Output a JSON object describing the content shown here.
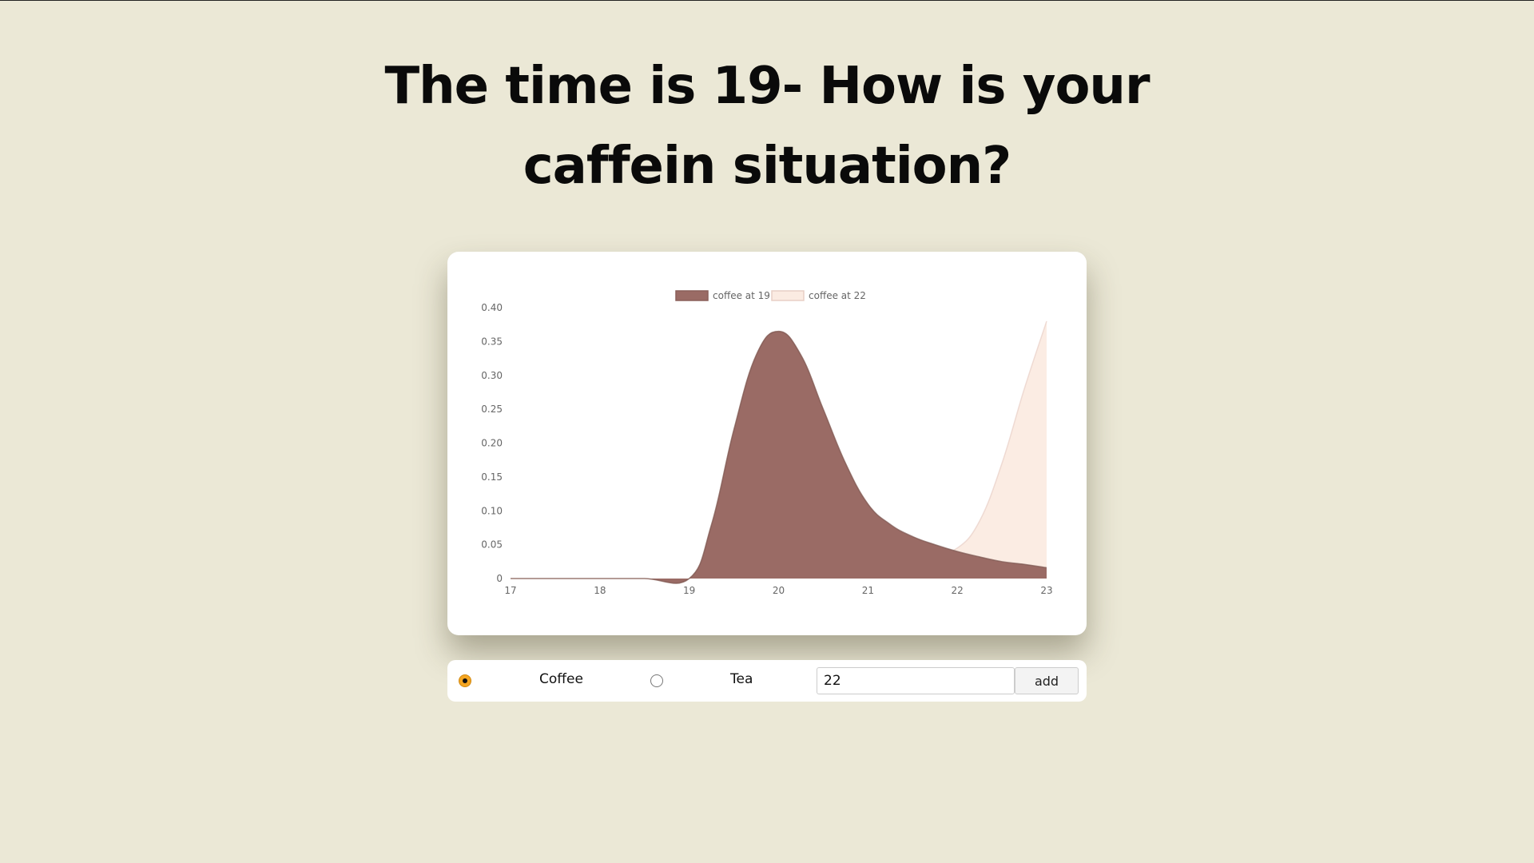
{
  "page": {
    "title": "The time is 19- How is your caffein situation?"
  },
  "chart_data": {
    "type": "area",
    "x": [
      17,
      17.5,
      18,
      18.5,
      19,
      19.25,
      19.5,
      19.75,
      20,
      20.25,
      20.5,
      20.75,
      21,
      21.25,
      21.5,
      21.75,
      22,
      22.25,
      22.5,
      22.75,
      23
    ],
    "series": [
      {
        "name": "coffee at 19",
        "color": "#9a6b65",
        "values": [
          0,
          0,
          0,
          0,
          0,
          0.08,
          0.22,
          0.33,
          0.365,
          0.33,
          0.25,
          0.17,
          0.11,
          0.08,
          0.062,
          0.05,
          0.04,
          0.032,
          0.025,
          0.021,
          0.016
        ]
      },
      {
        "name": "coffee at 22",
        "color": "#fbebe2",
        "values": [
          0,
          0,
          0,
          0,
          0,
          0.08,
          0.22,
          0.33,
          0.365,
          0.33,
          0.25,
          0.17,
          0.11,
          0.075,
          0.055,
          0.04,
          0.045,
          0.085,
          0.17,
          0.28,
          0.38
        ]
      }
    ],
    "x_ticks": [
      "17",
      "18",
      "19",
      "20",
      "21",
      "22",
      "23"
    ],
    "y_ticks": [
      "0",
      "0.05",
      "0.10",
      "0.15",
      "0.20",
      "0.25",
      "0.30",
      "0.35",
      "0.40"
    ],
    "xlim": [
      17,
      23
    ],
    "ylim": [
      0,
      0.4
    ],
    "legend_position": "top-center",
    "grid": false
  },
  "controls": {
    "options": [
      {
        "label": "Coffee",
        "selected": true
      },
      {
        "label": "Tea",
        "selected": false
      }
    ],
    "time_value": "22",
    "add_label": "add"
  }
}
